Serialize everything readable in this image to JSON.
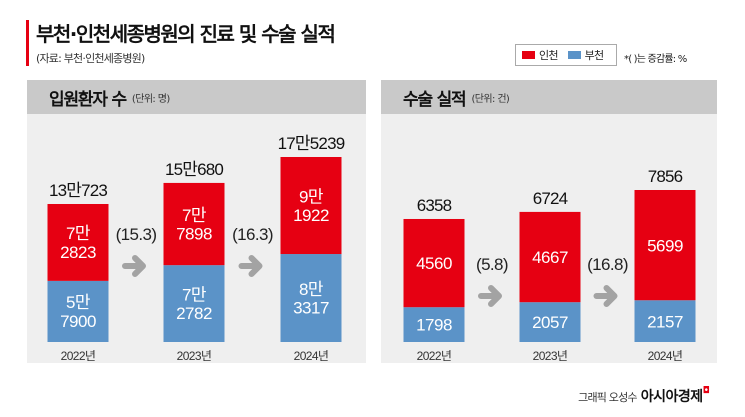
{
  "header": {
    "title": "부천·인천세종병원의 진료 및 수술 실적",
    "source": "(자료: 부천·인천세종병원)",
    "legend": [
      {
        "label": "인천",
        "color": "#e60012"
      },
      {
        "label": "부천",
        "color": "#5b93c8"
      }
    ],
    "note": "*( )는 증감률: %"
  },
  "credit": {
    "author": "그래픽 오성수",
    "brand": "아시아경제"
  },
  "colors": {
    "incheon": "#e60012",
    "bucheon": "#5b93c8",
    "arrow": "#a3a3a3",
    "panel_bg": "#efefef",
    "panel_head": "#c9c9c9"
  },
  "chart_data": [
    {
      "type": "bar",
      "stacked": true,
      "title": "입원환자 수",
      "unit": "(단위: 명)",
      "categories": [
        "2022년",
        "2023년",
        "2024년"
      ],
      "series": [
        {
          "name": "부천",
          "values": [
            57900,
            72782,
            83317
          ],
          "labels": [
            "5만\n7900",
            "7만\n2782",
            "8만\n3317"
          ]
        },
        {
          "name": "인천",
          "values": [
            72823,
            77898,
            91922
          ],
          "labels": [
            "7만\n2823",
            "7만\n7898",
            "9만\n1922"
          ]
        }
      ],
      "totals": [
        130723,
        150680,
        175239
      ],
      "total_labels": [
        "13만723",
        "15만680",
        "17만5239"
      ],
      "growth_labels": [
        "(15.3)",
        "(16.3)"
      ],
      "growth": [
        15.3,
        16.3
      ]
    },
    {
      "type": "bar",
      "stacked": true,
      "title": "수술 실적",
      "unit": "(단위: 건)",
      "categories": [
        "2022년",
        "2023년",
        "2024년"
      ],
      "series": [
        {
          "name": "부천",
          "values": [
            1798,
            2057,
            2157
          ],
          "labels": [
            "1798",
            "2057",
            "2157"
          ]
        },
        {
          "name": "인천",
          "values": [
            4560,
            4667,
            5699
          ],
          "labels": [
            "4560",
            "4667",
            "5699"
          ]
        }
      ],
      "totals": [
        6358,
        6724,
        7856
      ],
      "total_labels": [
        "6358",
        "6724",
        "7856"
      ],
      "growth_labels": [
        "(5.8)",
        "(16.8)"
      ],
      "growth": [
        5.8,
        16.8
      ]
    }
  ]
}
